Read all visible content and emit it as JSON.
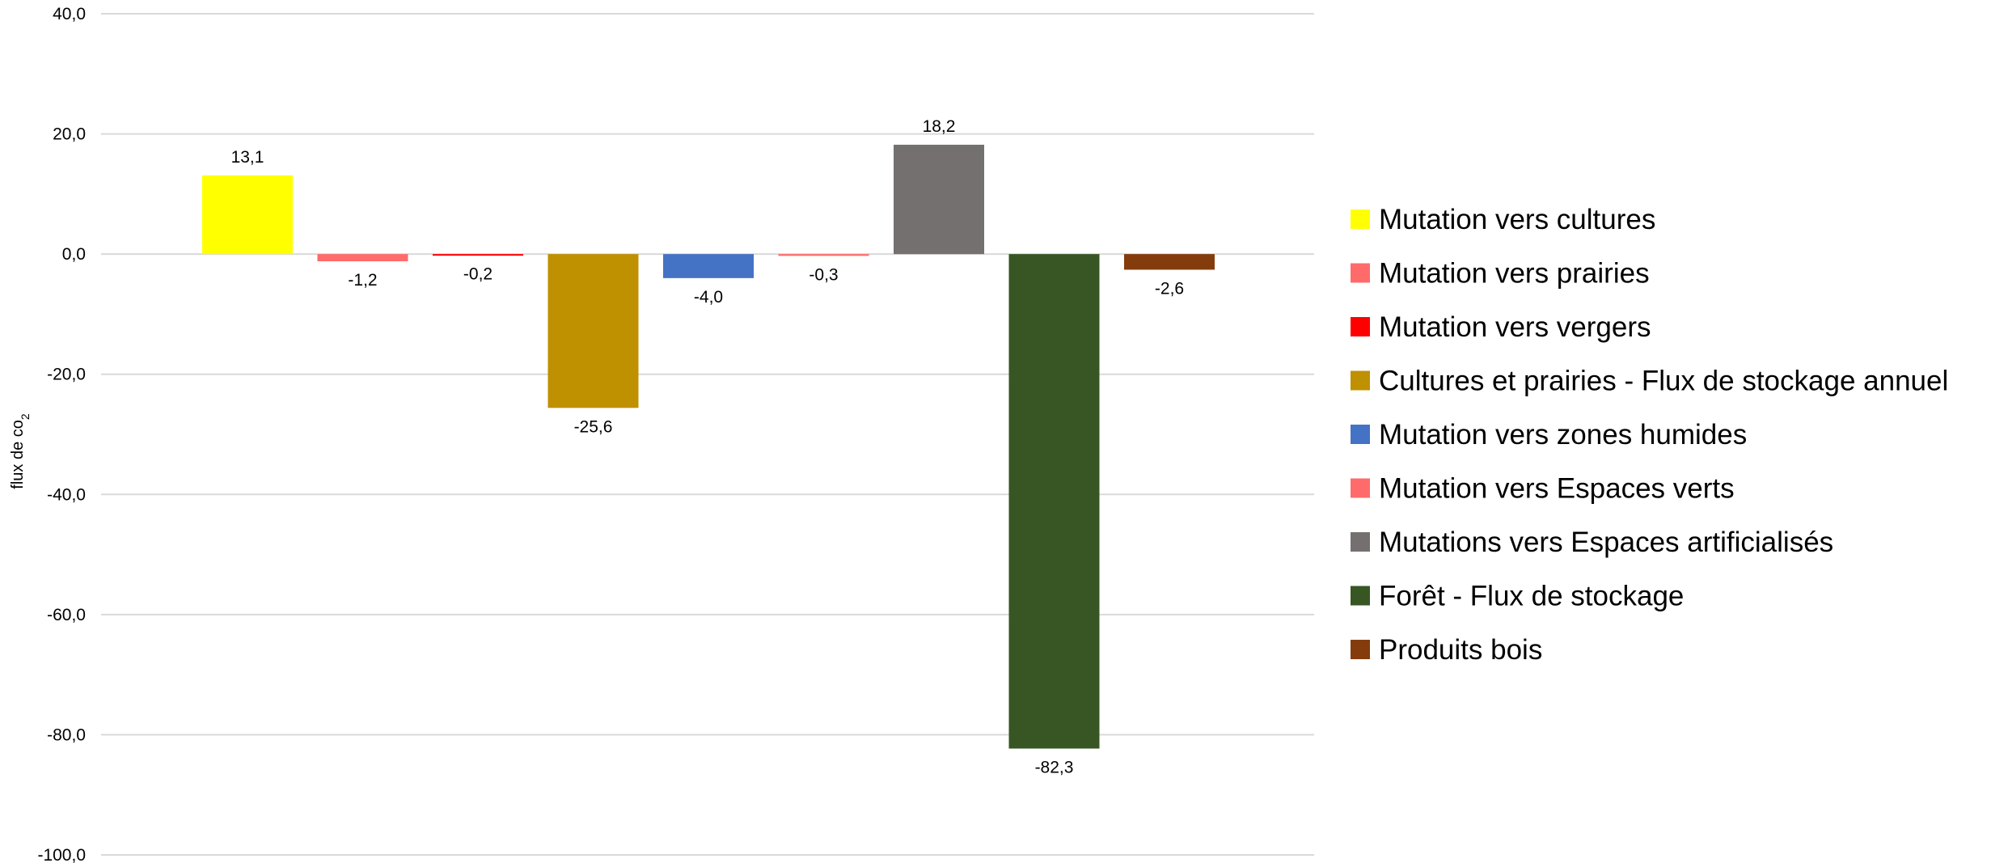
{
  "chart_data": {
    "type": "bar",
    "title": "",
    "xlabel": "",
    "ylabel": "flux de co",
    "ylabel_subscript": "2",
    "ylim": [
      -100,
      40
    ],
    "yticks": [
      40,
      20,
      0,
      -20,
      -40,
      -60,
      -80,
      -100
    ],
    "ytick_labels": [
      "40,0",
      "20,0",
      "0,0",
      "-20,0",
      "-40,0",
      "-60,0",
      "-80,0",
      "-100,0"
    ],
    "grid": true,
    "legend_position": "right",
    "series": [
      {
        "name": "Mutation vers cultures",
        "value": 13.1,
        "label": "13,1",
        "color": "#ffff00"
      },
      {
        "name": "Mutation vers prairies",
        "value": -1.2,
        "label": "-1,2",
        "color": "#ff6b6b"
      },
      {
        "name": "Mutation vers vergers",
        "value": -0.2,
        "label": "-0,2",
        "color": "#ff0000"
      },
      {
        "name": "Cultures et prairies - Flux de stockage annuel",
        "value": -25.6,
        "label": "-25,6",
        "color": "#bf9000"
      },
      {
        "name": "Mutation vers zones humides",
        "value": -4.0,
        "label": "-4,0",
        "color": "#4472c4"
      },
      {
        "name": "Mutation vers Espaces verts",
        "value": -0.3,
        "label": "-0,3",
        "color": "#ff6b6b"
      },
      {
        "name": "Mutations vers Espaces artificialisés",
        "value": 18.2,
        "label": "18,2",
        "color": "#757070"
      },
      {
        "name": "Forêt - Flux de stockage",
        "value": -82.3,
        "label": "-82,3",
        "color": "#375623"
      },
      {
        "name": "Produits bois",
        "value": -2.6,
        "label": "-2,6",
        "color": "#843c0c"
      }
    ]
  }
}
